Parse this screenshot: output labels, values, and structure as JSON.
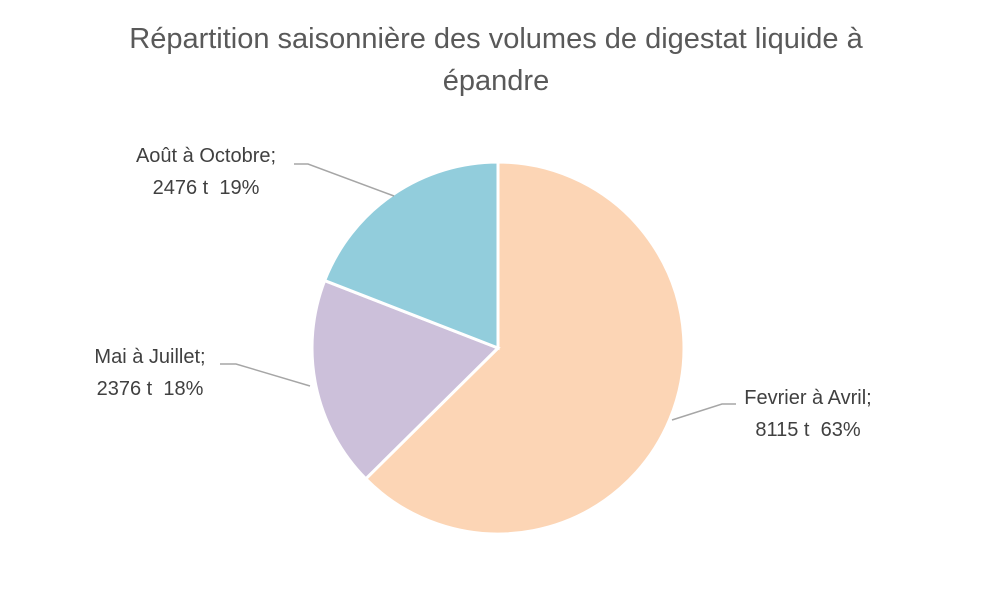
{
  "chart_data": {
    "type": "pie",
    "title": "Répartition saisonnière des volumes de digestat liquide à épandre",
    "legend": "none",
    "slices": [
      {
        "name": "Fevrier à Avril;",
        "value": 8115,
        "value_label": "8115 t",
        "percent_label": "63%",
        "color": "#fcd5b5"
      },
      {
        "name": "Mai à Juillet;",
        "value": 2376,
        "value_label": "2376 t",
        "percent_label": "18%",
        "color": "#ccc0da"
      },
      {
        "name": "Août à Octobre;",
        "value": 2476,
        "value_label": "2476 t",
        "percent_label": "19%",
        "color": "#92cddc"
      }
    ]
  }
}
